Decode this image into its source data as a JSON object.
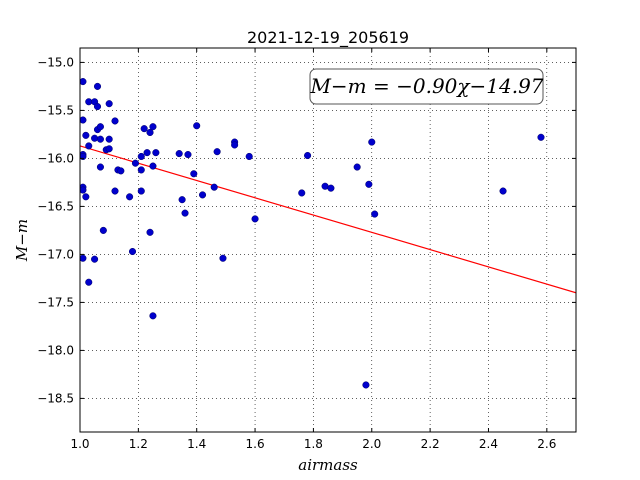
{
  "chart_data": {
    "type": "scatter",
    "title": "2021-12-19_205619",
    "xlabel": "airmass",
    "ylabel": "M−m",
    "xlim": [
      1.0,
      2.7
    ],
    "ylim": [
      -18.85,
      -14.85
    ],
    "y_inverted": true,
    "grid": true,
    "x_ticks": [
      1.0,
      1.2,
      1.4,
      1.6,
      1.8,
      2.0,
      2.2,
      2.4,
      2.6
    ],
    "x_tick_labels": [
      "1.0",
      "1.2",
      "1.4",
      "1.6",
      "1.8",
      "2.0",
      "2.2",
      "2.4",
      "2.6"
    ],
    "y_ticks": [
      -15.0,
      -15.5,
      -16.0,
      -16.5,
      -17.0,
      -17.5,
      -18.0,
      -18.5
    ],
    "y_tick_labels": [
      "−15.0",
      "−15.5",
      "−16.0",
      "−16.5",
      "−17.0",
      "−17.5",
      "−18.0",
      "−18.5"
    ],
    "annotation": "M−m = −0.90χ−14.97",
    "annotation_position": "top-right",
    "fit": {
      "slope": -0.9,
      "intercept": -14.97,
      "color": "#ff0000"
    },
    "marker_color": "#0000cc",
    "points": [
      [
        1.01,
        -15.2
      ],
      [
        1.01,
        -15.6
      ],
      [
        1.01,
        -15.96
      ],
      [
        1.01,
        -15.98
      ],
      [
        1.01,
        -16.3
      ],
      [
        1.01,
        -16.33
      ],
      [
        1.01,
        -17.04
      ],
      [
        1.02,
        -15.76
      ],
      [
        1.02,
        -16.4
      ],
      [
        1.03,
        -15.41
      ],
      [
        1.03,
        -15.87
      ],
      [
        1.03,
        -17.29
      ],
      [
        1.05,
        -15.41
      ],
      [
        1.05,
        -15.79
      ],
      [
        1.05,
        -17.05
      ],
      [
        1.06,
        -15.25
      ],
      [
        1.06,
        -15.46
      ],
      [
        1.06,
        -15.7
      ],
      [
        1.07,
        -15.67
      ],
      [
        1.07,
        -15.8
      ],
      [
        1.07,
        -16.09
      ],
      [
        1.08,
        -16.75
      ],
      [
        1.09,
        -15.91
      ],
      [
        1.1,
        -15.43
      ],
      [
        1.1,
        -15.8
      ],
      [
        1.1,
        -15.9
      ],
      [
        1.12,
        -16.34
      ],
      [
        1.12,
        -15.61
      ],
      [
        1.13,
        -16.12
      ],
      [
        1.14,
        -16.13
      ],
      [
        1.17,
        -16.4
      ],
      [
        1.18,
        -16.97
      ],
      [
        1.19,
        -16.05
      ],
      [
        1.21,
        -15.98
      ],
      [
        1.21,
        -16.34
      ],
      [
        1.21,
        -16.12
      ],
      [
        1.22,
        -15.69
      ],
      [
        1.23,
        -15.94
      ],
      [
        1.24,
        -15.73
      ],
      [
        1.24,
        -16.77
      ],
      [
        1.25,
        -15.67
      ],
      [
        1.25,
        -16.08
      ],
      [
        1.25,
        -17.64
      ],
      [
        1.26,
        -15.94
      ],
      [
        1.34,
        -15.95
      ],
      [
        1.35,
        -16.43
      ],
      [
        1.36,
        -16.57
      ],
      [
        1.37,
        -15.96
      ],
      [
        1.39,
        -16.16
      ],
      [
        1.4,
        -15.66
      ],
      [
        1.42,
        -16.38
      ],
      [
        1.46,
        -16.3
      ],
      [
        1.47,
        -15.93
      ],
      [
        1.49,
        -17.04
      ],
      [
        1.53,
        -15.83
      ],
      [
        1.53,
        -15.86
      ],
      [
        1.58,
        -15.98
      ],
      [
        1.6,
        -16.63
      ],
      [
        1.76,
        -16.36
      ],
      [
        1.78,
        -15.97
      ],
      [
        1.84,
        -16.29
      ],
      [
        1.86,
        -16.31
      ],
      [
        1.95,
        -16.09
      ],
      [
        1.98,
        -18.36
      ],
      [
        1.99,
        -16.27
      ],
      [
        2.0,
        -15.83
      ],
      [
        2.01,
        -16.58
      ],
      [
        2.45,
        -16.34
      ],
      [
        2.58,
        -15.78
      ]
    ]
  }
}
